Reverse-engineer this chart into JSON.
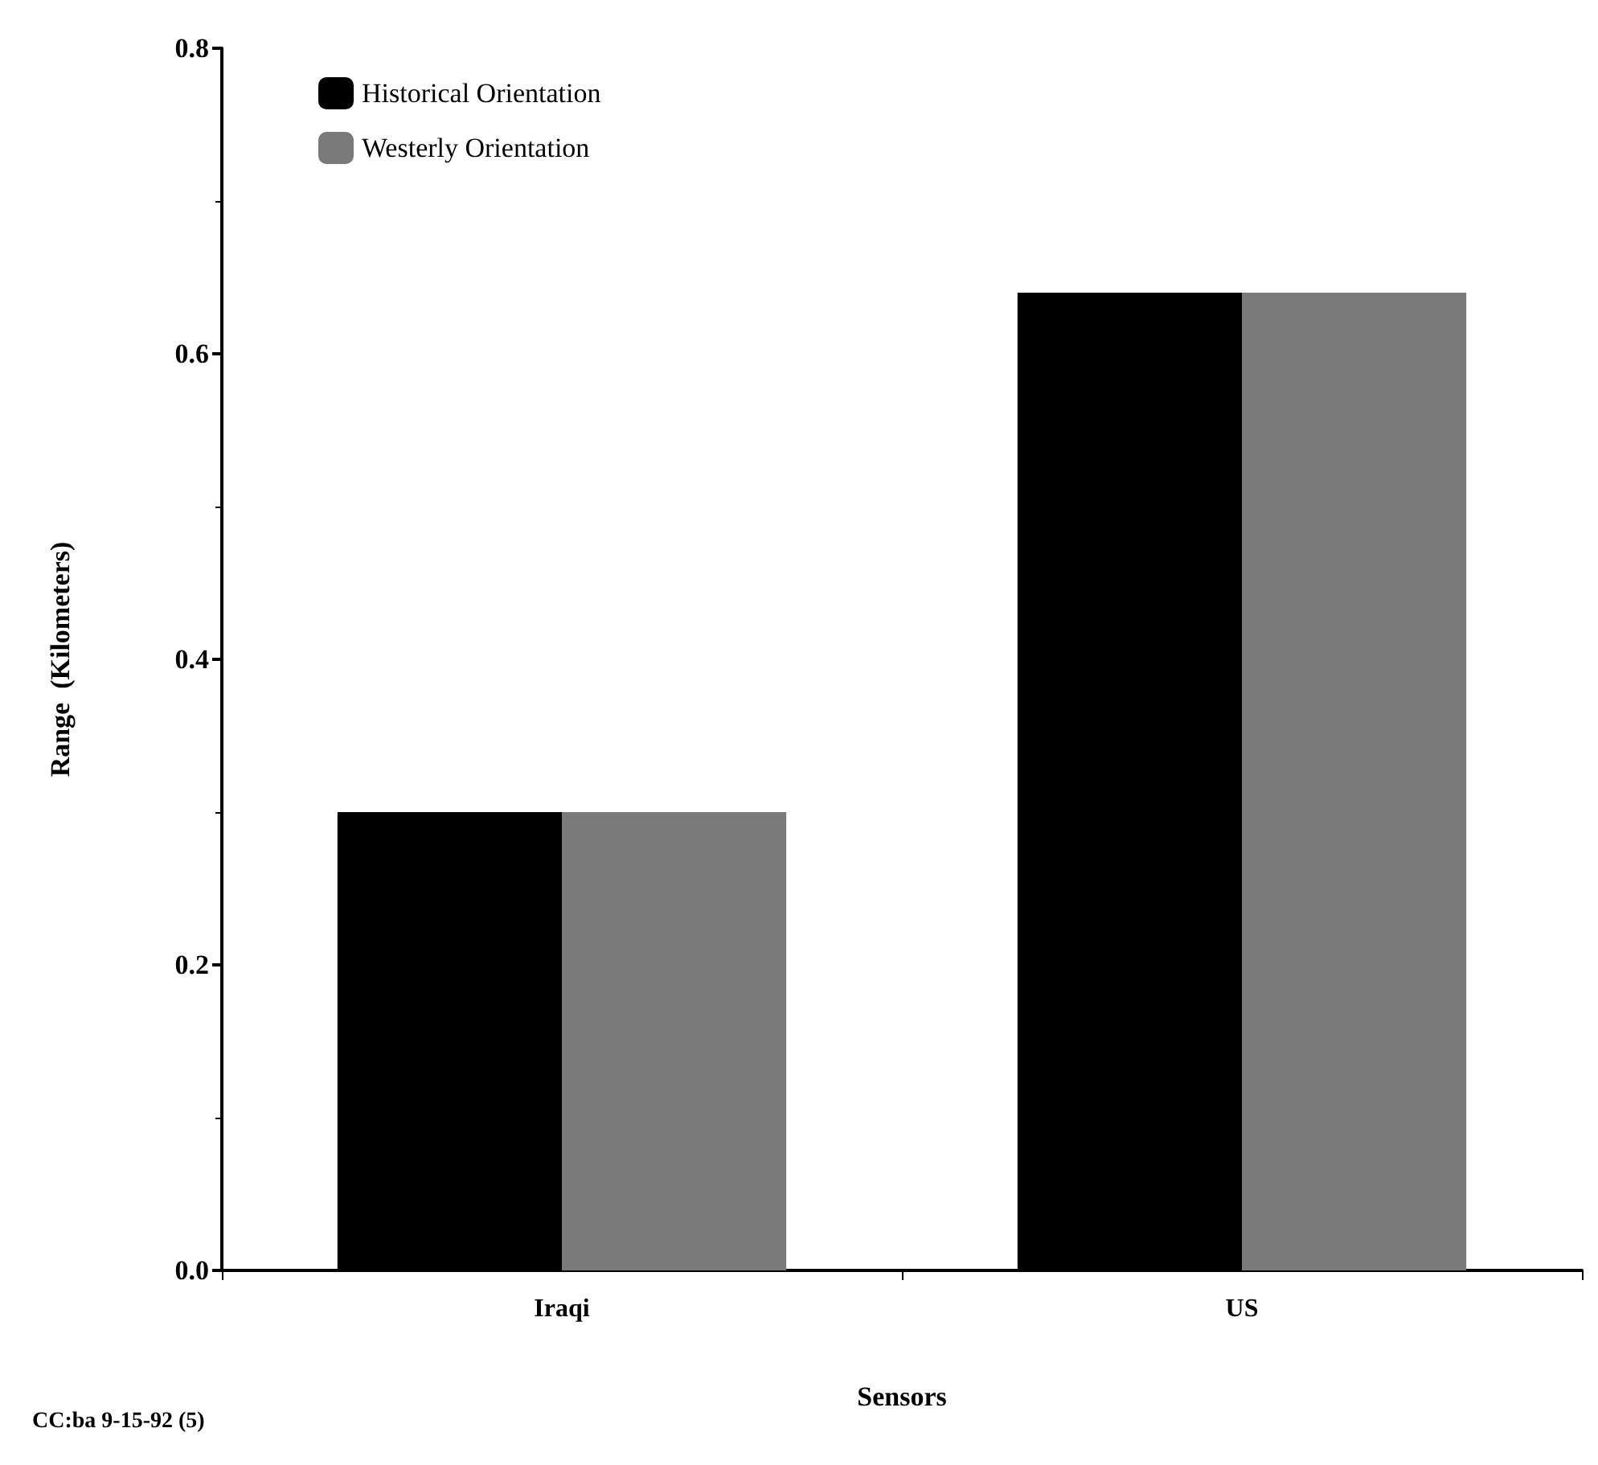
{
  "chart_data": {
    "type": "bar",
    "xlabel": "Sensors",
    "ylabel": "Range  (Kilometers)",
    "categories": [
      "Iraqi",
      "US"
    ],
    "series": [
      {
        "name": "Historical Orientation",
        "color": "#000000",
        "values": [
          0.3,
          0.64
        ]
      },
      {
        "name": "Westerly Orientation",
        "color": "#7a7a7a",
        "values": [
          0.3,
          0.64
        ]
      }
    ],
    "ylim": [
      0,
      0.8
    ],
    "yticks": [
      {
        "value": 0,
        "label": "0.0"
      },
      {
        "value": 0.2,
        "label": "0.2"
      },
      {
        "value": 0.4,
        "label": "0.4"
      },
      {
        "value": 0.6,
        "label": "0.6"
      },
      {
        "value": 0.8,
        "label": "0.8"
      }
    ],
    "grid": false,
    "legend": "top left",
    "annotations": [
      "CC:ba 9-15-92 (5)"
    ]
  }
}
